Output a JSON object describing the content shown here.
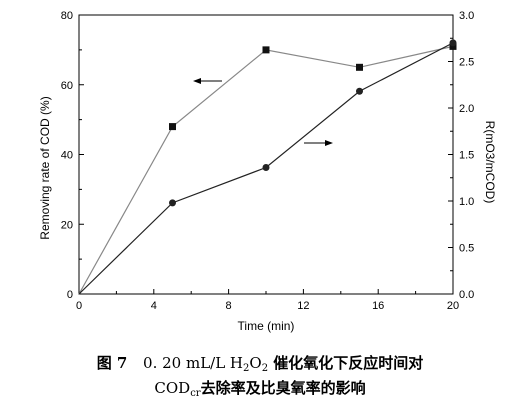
{
  "chart_data": {
    "type": "line",
    "x": [
      0,
      5,
      10,
      15,
      20
    ],
    "xlabel": "Time (min)",
    "xlim": [
      0,
      20
    ],
    "xticks": [
      "0",
      "4",
      "8",
      "12",
      "16",
      "20"
    ],
    "ylabel_left": "Removing rate of COD (%)",
    "ylim_left": [
      0,
      80
    ],
    "yticks_left": [
      "0",
      "20",
      "40",
      "60",
      "80"
    ],
    "ylabel_right": "R(mO3/mCOD)",
    "ylim_right": [
      0,
      3.0
    ],
    "yticks_right": [
      "0.0",
      "0.5",
      "1.0",
      "1.5",
      "2.0",
      "2.5",
      "3.0"
    ],
    "grid": false,
    "series": [
      {
        "axis": "left",
        "marker": "square",
        "color": "#888888",
        "values": [
          0,
          48,
          70,
          65,
          71
        ]
      },
      {
        "axis": "right",
        "marker": "circle",
        "color": "#222222",
        "values": [
          0,
          0.98,
          1.36,
          2.18,
          2.7
        ]
      }
    ],
    "annotations": [
      "arrow pointing left toward square series",
      "arrow pointing right toward circle series"
    ]
  },
  "caption": {
    "line1_prefix": "图 7",
    "line1_conc": "0. 20 mL/L H",
    "line1_sub1": "2",
    "line1_o": "O",
    "line1_sub2": "2",
    "line1_rest": " 催化氧化下反应时间对",
    "line2_cod": "COD",
    "line2_sub": "cr",
    "line2_rest": "去除率及比臭氧率的影响"
  }
}
